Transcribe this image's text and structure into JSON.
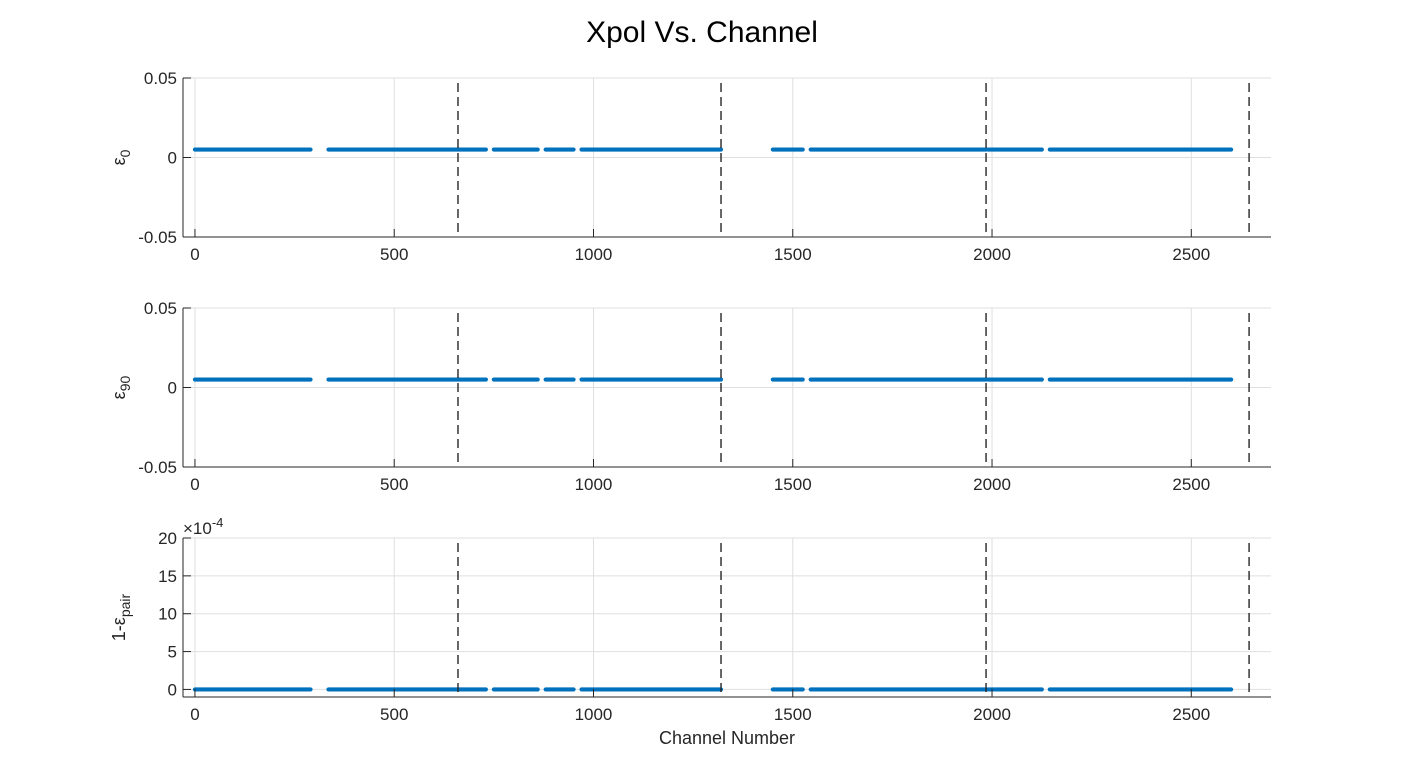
{
  "figure": {
    "title": "Xpol Vs. Channel",
    "xlabel": "Channel Number"
  },
  "chart_data": [
    {
      "type": "scatter",
      "xlim": [
        -30,
        2700
      ],
      "ylim": [
        -0.05,
        0.05
      ],
      "xticks": [
        0,
        500,
        1000,
        1500,
        2000,
        2500
      ],
      "xtick_labels": [
        "0",
        "500",
        "1000",
        "1500",
        "2000",
        "2500"
      ],
      "yticks": [
        -0.05,
        0,
        0.05
      ],
      "ytick_labels": [
        "-0.05",
        "0",
        "0.05"
      ],
      "ylabel": {
        "base": "ε",
        "sub": "0"
      },
      "grid": true,
      "color": "#0072BD",
      "series_y": 0.005,
      "x_ranges": [
        [
          0,
          290
        ],
        [
          335,
          730
        ],
        [
          750,
          860
        ],
        [
          880,
          950
        ],
        [
          970,
          1320
        ],
        [
          1450,
          1525
        ],
        [
          1545,
          1985
        ],
        [
          1990,
          2125
        ],
        [
          2145,
          2600
        ]
      ],
      "vlines": [
        660,
        1320,
        1985,
        2645
      ]
    },
    {
      "type": "scatter",
      "xlim": [
        -30,
        2700
      ],
      "ylim": [
        -0.05,
        0.05
      ],
      "xticks": [
        0,
        500,
        1000,
        1500,
        2000,
        2500
      ],
      "xtick_labels": [
        "0",
        "500",
        "1000",
        "1500",
        "2000",
        "2500"
      ],
      "yticks": [
        -0.05,
        0,
        0.05
      ],
      "ytick_labels": [
        "-0.05",
        "0",
        "0.05"
      ],
      "ylabel": {
        "base": "ε",
        "sub": "90"
      },
      "grid": true,
      "color": "#0072BD",
      "series_y": 0.005,
      "x_ranges": [
        [
          0,
          290
        ],
        [
          335,
          730
        ],
        [
          750,
          860
        ],
        [
          880,
          950
        ],
        [
          970,
          1320
        ],
        [
          1450,
          1525
        ],
        [
          1545,
          1985
        ],
        [
          1990,
          2125
        ],
        [
          2145,
          2600
        ]
      ],
      "vlines": [
        660,
        1320,
        1985,
        2645
      ]
    },
    {
      "type": "scatter",
      "xlim": [
        -30,
        2700
      ],
      "ylim": [
        -1,
        20
      ],
      "xticks": [
        0,
        500,
        1000,
        1500,
        2000,
        2500
      ],
      "xtick_labels": [
        "0",
        "500",
        "1000",
        "1500",
        "2000",
        "2500"
      ],
      "yticks": [
        0,
        5,
        10,
        15,
        20
      ],
      "ytick_labels": [
        "0",
        "5",
        "10",
        "15",
        "20"
      ],
      "yexponent_label": {
        "base": "×10",
        "exp": "-4"
      },
      "ylabel": {
        "base": "1-ε",
        "sub": "pair"
      },
      "grid": true,
      "color": "#0072BD",
      "series_y": 0,
      "x_ranges": [
        [
          0,
          290
        ],
        [
          335,
          730
        ],
        [
          750,
          860
        ],
        [
          880,
          950
        ],
        [
          970,
          1320
        ],
        [
          1450,
          1525
        ],
        [
          1545,
          1985
        ],
        [
          1990,
          2125
        ],
        [
          2145,
          2600
        ]
      ],
      "vlines": [
        660,
        1320,
        1985,
        2645
      ]
    }
  ]
}
